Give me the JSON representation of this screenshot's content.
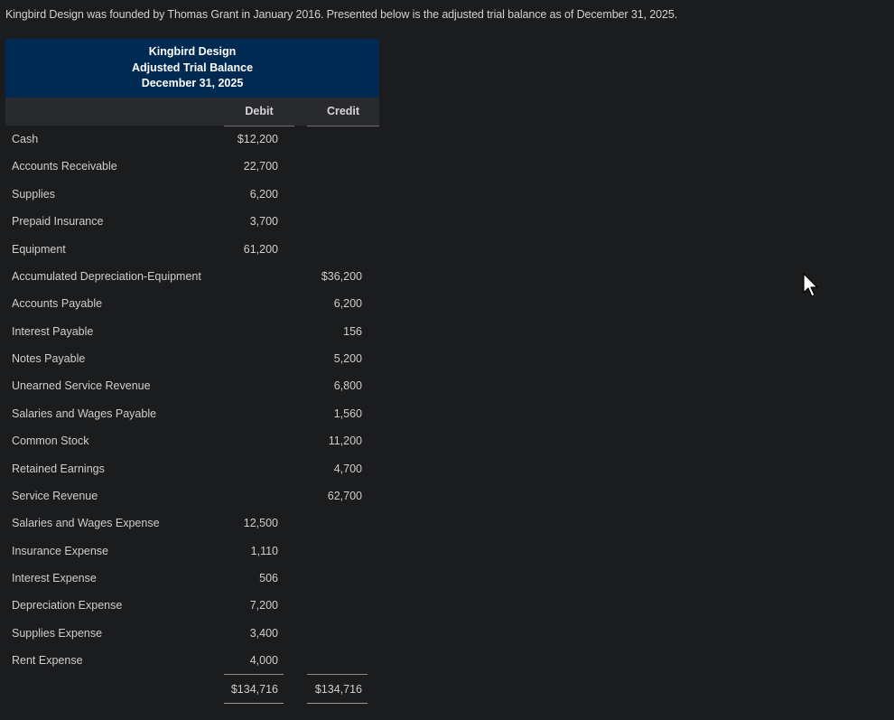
{
  "intro_text": "Kingbird Design was founded by Thomas Grant in January 2016. Presented below is the adjusted trial balance as of December 31, 2025.",
  "header": {
    "company": "Kingbird Design",
    "statement": "Adjusted Trial Balance",
    "date": "December 31, 2025"
  },
  "columns": {
    "debit": "Debit",
    "credit": "Credit"
  },
  "rows": [
    {
      "account": "Cash",
      "debit": "$12,200",
      "credit": ""
    },
    {
      "account": "Accounts Receivable",
      "debit": "22,700",
      "credit": ""
    },
    {
      "account": "Supplies",
      "debit": "6,200",
      "credit": ""
    },
    {
      "account": "Prepaid Insurance",
      "debit": "3,700",
      "credit": ""
    },
    {
      "account": "Equipment",
      "debit": "61,200",
      "credit": ""
    },
    {
      "account": "Accumulated Depreciation-Equipment",
      "debit": "",
      "credit": "$36,200"
    },
    {
      "account": "Accounts Payable",
      "debit": "",
      "credit": "6,200"
    },
    {
      "account": "Interest Payable",
      "debit": "",
      "credit": "156"
    },
    {
      "account": "Notes Payable",
      "debit": "",
      "credit": "5,200"
    },
    {
      "account": "Unearned Service Revenue",
      "debit": "",
      "credit": "6,800"
    },
    {
      "account": "Salaries and Wages Payable",
      "debit": "",
      "credit": "1,560"
    },
    {
      "account": "Common Stock",
      "debit": "",
      "credit": "11,200"
    },
    {
      "account": "Retained Earnings",
      "debit": "",
      "credit": "4,700"
    },
    {
      "account": "Service Revenue",
      "debit": "",
      "credit": "62,700"
    },
    {
      "account": "Salaries and Wages Expense",
      "debit": "12,500",
      "credit": ""
    },
    {
      "account": "Insurance Expense",
      "debit": "1,110",
      "credit": ""
    },
    {
      "account": "Interest Expense",
      "debit": "506",
      "credit": ""
    },
    {
      "account": "Depreciation Expense",
      "debit": "7,200",
      "credit": ""
    },
    {
      "account": "Supplies Expense",
      "debit": "3,400",
      "credit": ""
    },
    {
      "account": "Rent Expense",
      "debit": "4,000",
      "credit": ""
    }
  ],
  "totals": {
    "debit": "$134,716",
    "credit": "$134,716"
  },
  "icons": {
    "cursor": "mouse-pointer-icon"
  }
}
